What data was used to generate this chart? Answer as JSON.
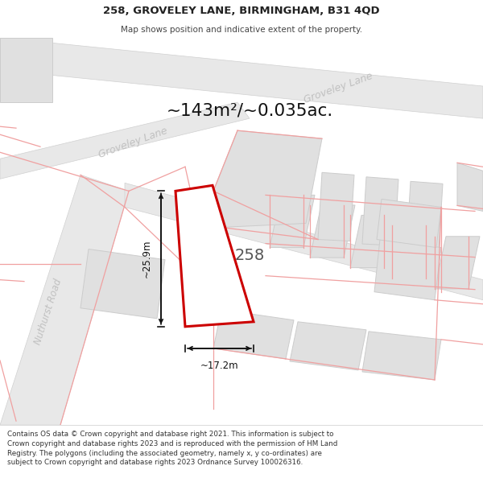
{
  "title_line1": "258, GROVELEY LANE, BIRMINGHAM, B31 4QD",
  "title_line2": "Map shows position and indicative extent of the property.",
  "area_label": "~143m²/~0.035ac.",
  "plot_number": "258",
  "dim_vertical": "~25.9m",
  "dim_horizontal": "~17.2m",
  "road_label_lower": "Groveley Lane",
  "road_label_upper": "Groveley Lane",
  "road_label_nuthurst": "Nuthurst Road",
  "footer_text": "Contains OS data © Crown copyright and database right 2021. This information is subject to Crown copyright and database rights 2023 and is reproduced with the permission of HM Land Registry. The polygons (including the associated geometry, namely x, y co-ordinates) are subject to Crown copyright and database rights 2023 Ordnance Survey 100026316.",
  "bg_color": "#ffffff",
  "map_bg": "#ffffff",
  "road_fill": "#e8e8e8",
  "road_edge": "#d0d0d0",
  "building_fill": "#e0e0e0",
  "building_edge": "#cccccc",
  "highlight_edge": "#cc0000",
  "highlight_fill": "#ffffff",
  "pink_line": "#f0a0a0",
  "road_text_color": "#c0c0c0",
  "dim_color": "#111111",
  "area_text_color": "#111111",
  "plot_text_color": "#555555",
  "title_color": "#222222",
  "footer_color": "#333333"
}
